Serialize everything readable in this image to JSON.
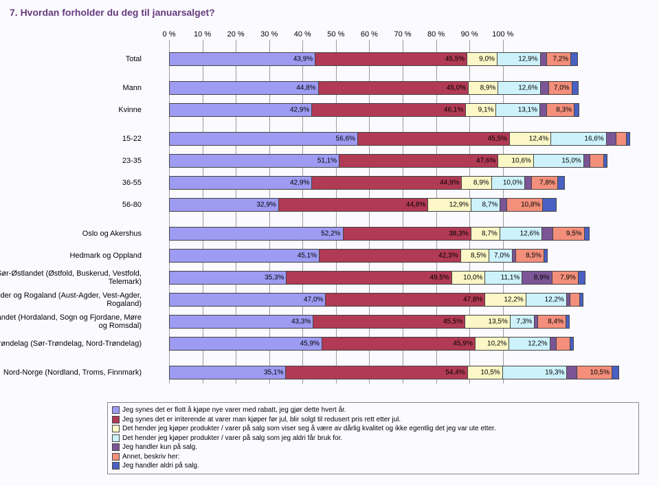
{
  "title": "7. Hvordan forholder du deg til januarsalget?",
  "title_fontsize": 14,
  "axis_fontsize": 11,
  "cat_fontsize": 11,
  "seg_fontsize": 10,
  "legend_fontsize": 10,
  "colors": {
    "s0": "#9d9bf2",
    "s1": "#b13a54",
    "s2": "#fbf7c6",
    "s3": "#cdf2fb",
    "s4": "#7b5596",
    "s5": "#f38f7b",
    "s6": "#4a60c2",
    "grid": "#9a9a9a",
    "title": "#643a7c",
    "bg": "#fbfaff"
  },
  "xaxis": {
    "ticks": [
      0,
      10,
      20,
      30,
      40,
      50,
      60,
      70,
      80,
      90,
      100
    ],
    "labels": [
      "0 %",
      "10 %",
      "20 %",
      "30 %",
      "40 %",
      "50 %",
      "60 %",
      "70 %",
      "80 %",
      "90 %",
      "100 %"
    ]
  },
  "legend": [
    {
      "c": "s0",
      "t": "Jeg synes det er flott å kjøpe nye varer med rabatt, jeg gjør dette hvert år."
    },
    {
      "c": "s1",
      "t": "Jeg synes det er irriterende at varer man kjøper før jul, blir solgt til redusert pris rett etter jul."
    },
    {
      "c": "s2",
      "t": "Det hender jeg kjøper produkter / varer på salg som viser seg å være av dårlig kvalitet og ikke egentlig det jeg var ute etter."
    },
    {
      "c": "s3",
      "t": "Det hender jeg kjøper produkter / varer på salg som jeg aldri får bruk for."
    },
    {
      "c": "s4",
      "t": "Jeg handler kun på salg."
    },
    {
      "c": "s5",
      "t": "Annet, beskriv her:"
    },
    {
      "c": "s6",
      "t": "Jeg handler aldri på salg."
    }
  ],
  "rows": [
    {
      "label": "Total",
      "gap": true,
      "seg": [
        {
          "c": "s0",
          "v": 43.9,
          "t": "43,9%"
        },
        {
          "c": "s1",
          "v": 45.5,
          "t": "45,5%"
        },
        {
          "c": "s2",
          "v": 9.0,
          "t": "9,0%"
        },
        {
          "c": "s3",
          "v": 12.9,
          "t": "12,9%"
        },
        {
          "c": "s4",
          "v": 2.0,
          "t": ""
        },
        {
          "c": "s5",
          "v": 7.2,
          "t": "7,2%"
        },
        {
          "c": "s6",
          "v": 2.0,
          "t": ""
        }
      ]
    },
    {
      "label": "Mann",
      "seg": [
        {
          "c": "s0",
          "v": 44.8,
          "t": "44,8%"
        },
        {
          "c": "s1",
          "v": 45.0,
          "t": "45,0%"
        },
        {
          "c": "s2",
          "v": 8.9,
          "t": "8,9%"
        },
        {
          "c": "s3",
          "v": 12.6,
          "t": "12,6%"
        },
        {
          "c": "s4",
          "v": 2.5,
          "t": ""
        },
        {
          "c": "s5",
          "v": 7.0,
          "t": "7,0%"
        },
        {
          "c": "s6",
          "v": 2.0,
          "t": ""
        }
      ]
    },
    {
      "label": "Kvinne",
      "gap": true,
      "seg": [
        {
          "c": "s0",
          "v": 42.9,
          "t": "42,9%"
        },
        {
          "c": "s1",
          "v": 46.1,
          "t": "46,1%"
        },
        {
          "c": "s2",
          "v": 9.1,
          "t": "9,1%"
        },
        {
          "c": "s3",
          "v": 13.1,
          "t": "13,1%"
        },
        {
          "c": "s4",
          "v": 2.0,
          "t": ""
        },
        {
          "c": "s5",
          "v": 8.3,
          "t": "8,3%"
        },
        {
          "c": "s6",
          "v": 1.5,
          "t": ""
        }
      ]
    },
    {
      "label": "15-22",
      "seg": [
        {
          "c": "s0",
          "v": 56.6,
          "t": "56,6%"
        },
        {
          "c": "s1",
          "v": 45.5,
          "t": "45,5%"
        },
        {
          "c": "s2",
          "v": 12.4,
          "t": "12,4%"
        },
        {
          "c": "s3",
          "v": 16.6,
          "t": "16,6%"
        },
        {
          "c": "s4",
          "v": 3.0,
          "t": ""
        },
        {
          "c": "s5",
          "v": 3.0,
          "t": ""
        },
        {
          "c": "s6",
          "v": 1.0,
          "t": ""
        }
      ]
    },
    {
      "label": "23-35",
      "seg": [
        {
          "c": "s0",
          "v": 51.1,
          "t": "51,1%"
        },
        {
          "c": "s1",
          "v": 47.6,
          "t": "47,6%"
        },
        {
          "c": "s2",
          "v": 10.6,
          "t": "10,6%"
        },
        {
          "c": "s3",
          "v": 15.0,
          "t": "15,0%"
        },
        {
          "c": "s4",
          "v": 2.0,
          "t": ""
        },
        {
          "c": "s5",
          "v": 4.0,
          "t": ""
        },
        {
          "c": "s6",
          "v": 1.0,
          "t": ""
        }
      ]
    },
    {
      "label": "36-55",
      "seg": [
        {
          "c": "s0",
          "v": 42.9,
          "t": "42,9%"
        },
        {
          "c": "s1",
          "v": 44.9,
          "t": "44,9%"
        },
        {
          "c": "s2",
          "v": 8.9,
          "t": "8,9%"
        },
        {
          "c": "s3",
          "v": 10.0,
          "t": "10,0%"
        },
        {
          "c": "s4",
          "v": 2.0,
          "t": ""
        },
        {
          "c": "s5",
          "v": 7.8,
          "t": "7,8%"
        },
        {
          "c": "s6",
          "v": 2.0,
          "t": ""
        }
      ]
    },
    {
      "label": "56-80",
      "gap": true,
      "seg": [
        {
          "c": "s0",
          "v": 32.9,
          "t": "32,9%"
        },
        {
          "c": "s1",
          "v": 44.8,
          "t": "44,8%"
        },
        {
          "c": "s2",
          "v": 12.9,
          "t": "12,9%"
        },
        {
          "c": "s3",
          "v": 8.7,
          "t": "8,7%"
        },
        {
          "c": "s4",
          "v": 2.0,
          "t": ""
        },
        {
          "c": "s5",
          "v": 10.8,
          "t": "10,8%"
        },
        {
          "c": "s6",
          "v": 4.0,
          "t": ""
        }
      ]
    },
    {
      "label": "Oslo og Akershus",
      "seg": [
        {
          "c": "s0",
          "v": 52.2,
          "t": "52,2%"
        },
        {
          "c": "s1",
          "v": 38.3,
          "t": "38,3%"
        },
        {
          "c": "s2",
          "v": 8.7,
          "t": "8,7%"
        },
        {
          "c": "s3",
          "v": 12.6,
          "t": "12,6%"
        },
        {
          "c": "s4",
          "v": 3.2,
          "t": ""
        },
        {
          "c": "s5",
          "v": 9.5,
          "t": "9,5%"
        },
        {
          "c": "s6",
          "v": 1.5,
          "t": ""
        }
      ]
    },
    {
      "label": "Hedmark og Oppland",
      "seg": [
        {
          "c": "s0",
          "v": 45.1,
          "t": "45,1%"
        },
        {
          "c": "s1",
          "v": 42.3,
          "t": "42,3%"
        },
        {
          "c": "s2",
          "v": 8.5,
          "t": "8,5%"
        },
        {
          "c": "s3",
          "v": 7.0,
          "t": "7,0%"
        },
        {
          "c": "s4",
          "v": 1.0,
          "t": ""
        },
        {
          "c": "s5",
          "v": 8.5,
          "t": "8,5%"
        },
        {
          "c": "s6",
          "v": 1.0,
          "t": ""
        }
      ]
    },
    {
      "label": "Sør-Østlandet (Østfold, Buskerud, Vestfold, Telemark)",
      "seg": [
        {
          "c": "s0",
          "v": 35.3,
          "t": "35,3%"
        },
        {
          "c": "s1",
          "v": 49.5,
          "t": "49,5%"
        },
        {
          "c": "s2",
          "v": 10.0,
          "t": "10,0%"
        },
        {
          "c": "s3",
          "v": 11.1,
          "t": "11,1%"
        },
        {
          "c": "s4",
          "v": 8.9,
          "t": "8,9%"
        },
        {
          "c": "s5",
          "v": 7.9,
          "t": "7,9%"
        },
        {
          "c": "s6",
          "v": 2.0,
          "t": ""
        }
      ]
    },
    {
      "label": "Agder og Rogaland (Aust-Agder, Vest-Agder, Rogaland)",
      "seg": [
        {
          "c": "s0",
          "v": 47.0,
          "t": "47,0%"
        },
        {
          "c": "s1",
          "v": 47.8,
          "t": "47,8%"
        },
        {
          "c": "s2",
          "v": 12.2,
          "t": "12,2%"
        },
        {
          "c": "s3",
          "v": 12.2,
          "t": "12,2%"
        },
        {
          "c": "s4",
          "v": 1.0,
          "t": ""
        },
        {
          "c": "s5",
          "v": 3.0,
          "t": ""
        },
        {
          "c": "s6",
          "v": 1.0,
          "t": ""
        }
      ]
    },
    {
      "label": "Vestlandet (Hordaland, Sogn og Fjordane, Møre og Romsdal)",
      "seg": [
        {
          "c": "s0",
          "v": 43.3,
          "t": "43,3%"
        },
        {
          "c": "s1",
          "v": 45.5,
          "t": "45,5%"
        },
        {
          "c": "s2",
          "v": 13.5,
          "t": "13,5%"
        },
        {
          "c": "s3",
          "v": 7.3,
          "t": "7,3%"
        },
        {
          "c": "s4",
          "v": 1.0,
          "t": ""
        },
        {
          "c": "s5",
          "v": 8.4,
          "t": "8,4%"
        },
        {
          "c": "s6",
          "v": 1.0,
          "t": ""
        }
      ]
    },
    {
      "label": "Trøndelag (Sør-Trøndelag, Nord-Trøndelag)",
      "gap": true,
      "seg": [
        {
          "c": "s0",
          "v": 45.9,
          "t": "45,9%"
        },
        {
          "c": "s1",
          "v": 45.9,
          "t": "45,9%"
        },
        {
          "c": "s2",
          "v": 10.2,
          "t": "10,2%"
        },
        {
          "c": "s3",
          "v": 12.2,
          "t": "12,2%"
        },
        {
          "c": "s4",
          "v": 2.0,
          "t": ""
        },
        {
          "c": "s5",
          "v": 4.0,
          "t": ""
        },
        {
          "c": "s6",
          "v": 1.0,
          "t": ""
        }
      ]
    },
    {
      "label": "Nord-Norge (Nordland, Troms, Finnmark)",
      "seg": [
        {
          "c": "s0",
          "v": 35.1,
          "t": "35,1%"
        },
        {
          "c": "s1",
          "v": 54.4,
          "t": "54,4%"
        },
        {
          "c": "s2",
          "v": 10.5,
          "t": "10,5%"
        },
        {
          "c": "s3",
          "v": 19.3,
          "t": "19,3%"
        },
        {
          "c": "s4",
          "v": 3.0,
          "t": ""
        },
        {
          "c": "s5",
          "v": 10.5,
          "t": "10,5%"
        },
        {
          "c": "s6",
          "v": 2.0,
          "t": ""
        }
      ]
    }
  ],
  "scale_max": 140
}
